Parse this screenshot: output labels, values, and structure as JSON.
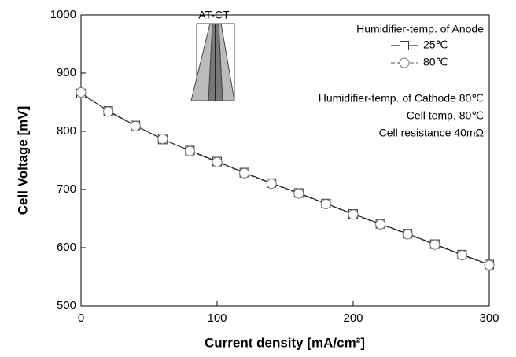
{
  "chart_data": {
    "type": "line",
    "x_label": "Current density [mA/cm²]",
    "y_label": "Cell Voltage  [mV]",
    "x": [
      0,
      20,
      40,
      60,
      80,
      100,
      120,
      140,
      160,
      180,
      200,
      220,
      240,
      260,
      280,
      300
    ],
    "series": [
      {
        "name": "25℃",
        "color": "#000000",
        "marker": "square",
        "dashed": false,
        "values": [
          865,
          835,
          810,
          786,
          767,
          748,
          729,
          711,
          694,
          676,
          658,
          641,
          624,
          606,
          588,
          571
        ]
      },
      {
        "name": "80℃",
        "color": "#555555",
        "marker": "circle",
        "dashed": true,
        "values": [
          867,
          834,
          809,
          787,
          766,
          747,
          728,
          710,
          693,
          675,
          657,
          640,
          623,
          605,
          587,
          570
        ]
      }
    ],
    "legend_title": "Humidifier-temp. of Anode",
    "annotations": [
      "Humidifier-temp. of Cathode 80℃",
      "Cell temp. 80℃",
      "Cell resistance 40mΩ"
    ],
    "inset_label": "AT-CT",
    "xlim": [
      0,
      300
    ],
    "xticks": [
      0,
      100,
      200,
      300
    ],
    "ylim": [
      500,
      1000
    ],
    "yticks": [
      500,
      600,
      700,
      800,
      900,
      1000
    ],
    "grid": false,
    "legend_position": "upper right"
  }
}
